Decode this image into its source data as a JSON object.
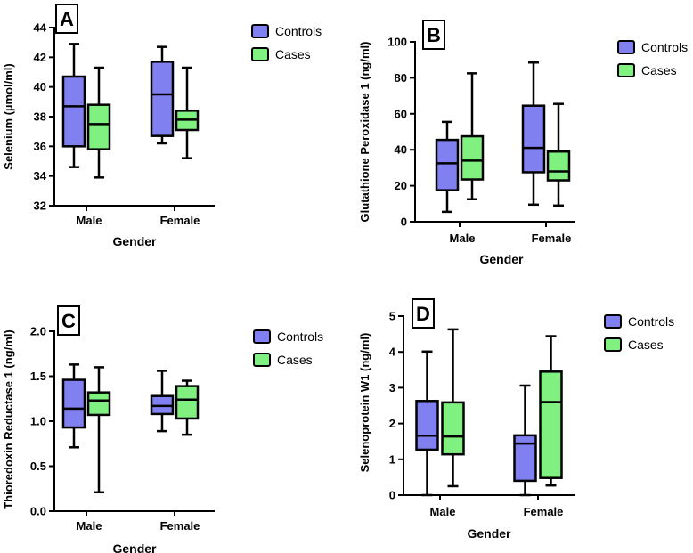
{
  "colors": {
    "controls": "#8080f0",
    "cases": "#80f080",
    "stroke": "#000000"
  },
  "chart_data": [
    {
      "panel": "A",
      "type": "boxplot",
      "xlabel": "Gender",
      "ylabel": "Selenium (µmol/ml)",
      "ylim": [
        32,
        44
      ],
      "yticks": [
        32,
        34,
        36,
        38,
        40,
        42,
        44
      ],
      "categories": [
        "Male",
        "Female"
      ],
      "legend": [
        "Controls",
        "Cases"
      ],
      "series": [
        {
          "name": "Controls",
          "boxes": [
            {
              "min": 34.6,
              "q1": 36.0,
              "median": 38.7,
              "q3": 40.7,
              "max": 42.9
            },
            {
              "min": 36.2,
              "q1": 36.7,
              "median": 39.5,
              "q3": 41.7,
              "max": 42.7
            }
          ]
        },
        {
          "name": "Cases",
          "boxes": [
            {
              "min": 33.9,
              "q1": 35.8,
              "median": 37.5,
              "q3": 38.8,
              "max": 41.3
            },
            {
              "min": 35.2,
              "q1": 37.1,
              "median": 37.8,
              "q3": 38.4,
              "max": 41.3
            }
          ]
        }
      ]
    },
    {
      "panel": "B",
      "type": "boxplot",
      "xlabel": "Gender",
      "ylabel": "Glutathione Peroxidase 1 (ng/ml)",
      "ylim": [
        0,
        100
      ],
      "yticks": [
        0,
        20,
        40,
        60,
        80,
        100
      ],
      "categories": [
        "Male",
        "Female"
      ],
      "legend": [
        "Controls",
        "Cases"
      ],
      "series": [
        {
          "name": "Controls",
          "boxes": [
            {
              "min": 5.5,
              "q1": 17.5,
              "median": 32.5,
              "q3": 45.5,
              "max": 55.5
            },
            {
              "min": 9.5,
              "q1": 27.5,
              "median": 41.0,
              "q3": 64.5,
              "max": 88.5
            }
          ]
        },
        {
          "name": "Cases",
          "boxes": [
            {
              "min": 12.5,
              "q1": 23.5,
              "median": 34.0,
              "q3": 47.5,
              "max": 82.5
            },
            {
              "min": 9.0,
              "q1": 23.0,
              "median": 28.0,
              "q3": 39.0,
              "max": 65.5
            }
          ]
        }
      ]
    },
    {
      "panel": "C",
      "type": "boxplot",
      "xlabel": "Gender",
      "ylabel": "Thioredoxin Reductase 1 (ng/ml)",
      "ylim": [
        0,
        2
      ],
      "yticks": [
        0,
        0.5,
        1.0,
        1.5,
        2.0
      ],
      "yticklabels": [
        "0.0",
        "0.5",
        "1.0",
        "1.5",
        "2.0"
      ],
      "categories": [
        "Male",
        "Female"
      ],
      "legend": [
        "Controls",
        "Cases"
      ],
      "series": [
        {
          "name": "Controls",
          "boxes": [
            {
              "min": 0.71,
              "q1": 0.93,
              "median": 1.14,
              "q3": 1.46,
              "max": 1.63
            },
            {
              "min": 0.89,
              "q1": 1.08,
              "median": 1.17,
              "q3": 1.28,
              "max": 1.56
            }
          ]
        },
        {
          "name": "Cases",
          "boxes": [
            {
              "min": 0.21,
              "q1": 1.07,
              "median": 1.23,
              "q3": 1.32,
              "max": 1.6
            },
            {
              "min": 0.85,
              "q1": 1.03,
              "median": 1.24,
              "q3": 1.39,
              "max": 1.45
            }
          ]
        }
      ]
    },
    {
      "panel": "D",
      "type": "boxplot",
      "xlabel": "Gender",
      "ylabel": "Selenoprotein W1 (ng/ml)",
      "ylim": [
        0,
        5
      ],
      "yticks": [
        0,
        1,
        2,
        3,
        4,
        5
      ],
      "categories": [
        "Male",
        "Female"
      ],
      "legend": [
        "Controls",
        "Cases"
      ],
      "series": [
        {
          "name": "Controls",
          "boxes": [
            {
              "min": 0.0,
              "q1": 1.27,
              "median": 1.66,
              "q3": 2.63,
              "max": 4.01
            },
            {
              "min": 0.0,
              "q1": 0.4,
              "median": 1.44,
              "q3": 1.67,
              "max": 3.06
            }
          ]
        },
        {
          "name": "Cases",
          "boxes": [
            {
              "min": 0.25,
              "q1": 1.14,
              "median": 1.64,
              "q3": 2.59,
              "max": 4.63
            },
            {
              "min": 0.27,
              "q1": 0.48,
              "median": 2.6,
              "q3": 3.45,
              "max": 4.44
            }
          ]
        }
      ]
    }
  ]
}
